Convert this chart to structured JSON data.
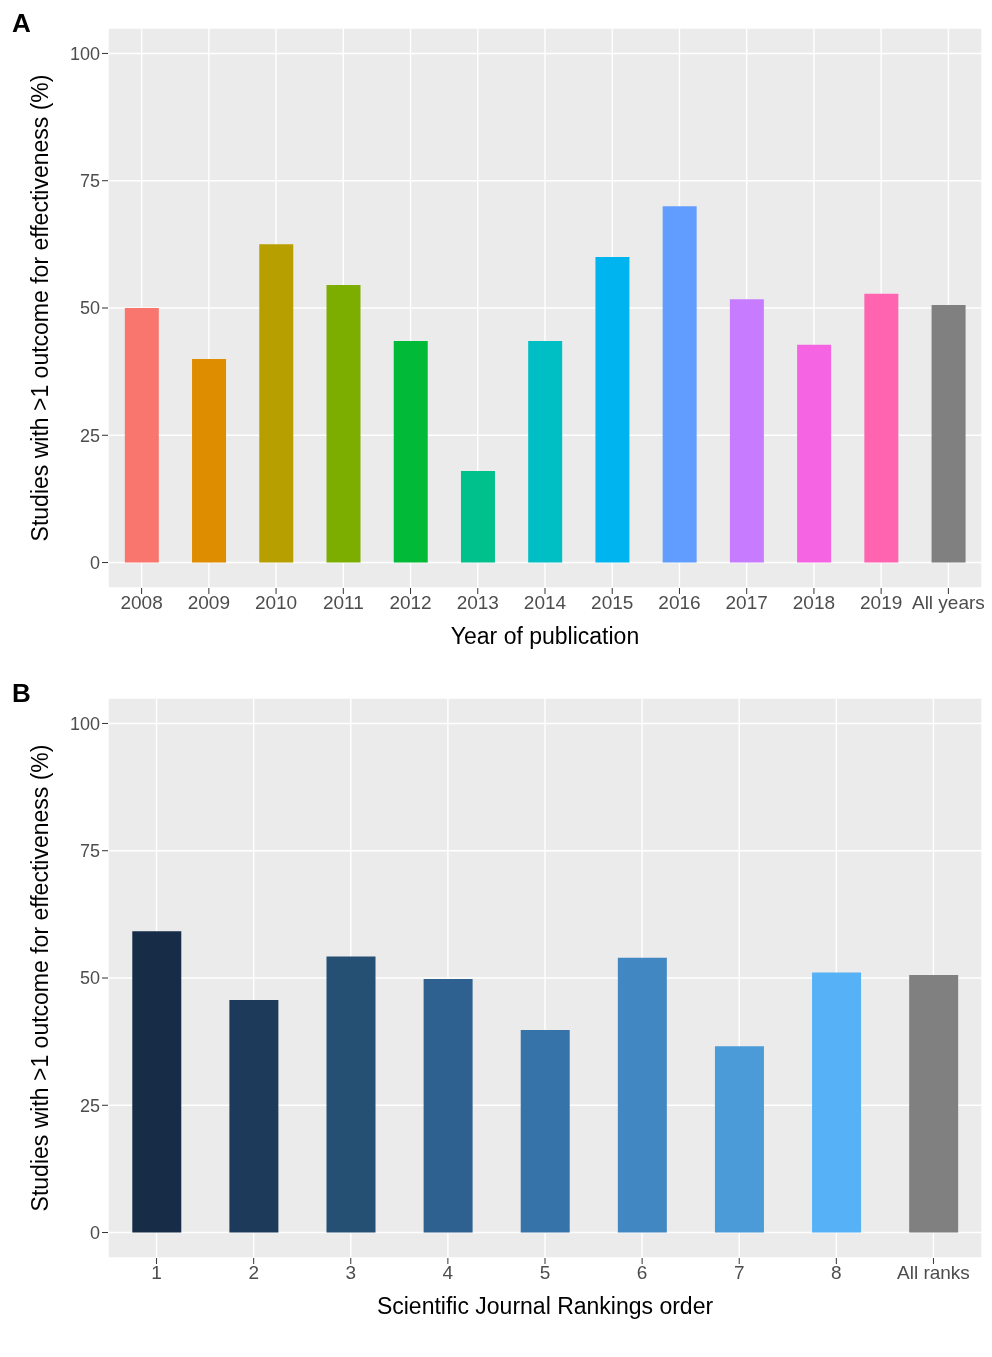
{
  "chart_data": [
    {
      "type": "bar",
      "title": "A",
      "xlabel": "Year of publication",
      "ylabel": "Studies with >1 outcome for effectiveness (%)",
      "categories": [
        "2008",
        "2009",
        "2010",
        "2011",
        "2012",
        "2013",
        "2014",
        "2015",
        "2016",
        "2017",
        "2018",
        "2019",
        "All years"
      ],
      "values": [
        50,
        40,
        62.5,
        54.5,
        43.5,
        18,
        43.5,
        60,
        70,
        51.7,
        42.8,
        52.8,
        50.6
      ],
      "colors": [
        "#f8766d",
        "#de8c00",
        "#b79f00",
        "#7cae00",
        "#00ba38",
        "#00c08b",
        "#00bfc4",
        "#00b4f0",
        "#619cff",
        "#c77cff",
        "#f564e3",
        "#ff64b0",
        "#808080"
      ],
      "ylim": [
        -5,
        105
      ],
      "yticks": [
        0,
        25,
        50,
        75,
        100
      ],
      "grid": true,
      "legend": false
    },
    {
      "type": "bar",
      "title": "B",
      "xlabel": "Scientific Journal Rankings order",
      "ylabel": "Studies with >1 outcome for effectiveness (%)",
      "categories": [
        "1",
        "2",
        "3",
        "4",
        "5",
        "6",
        "7",
        "8",
        "All ranks"
      ],
      "values": [
        59.2,
        45.7,
        54.2,
        49.8,
        39.8,
        54,
        36.6,
        51.1,
        50.6
      ],
      "colors": [
        "#172d47",
        "#1e3a5a",
        "#264f74",
        "#2e6190",
        "#3673a8",
        "#4188c3",
        "#4b9bd8",
        "#56b1f7",
        "#808080"
      ],
      "ylim": [
        -5,
        105
      ],
      "yticks": [
        0,
        25,
        50,
        75,
        100
      ],
      "grid": true,
      "legend": false
    }
  ]
}
